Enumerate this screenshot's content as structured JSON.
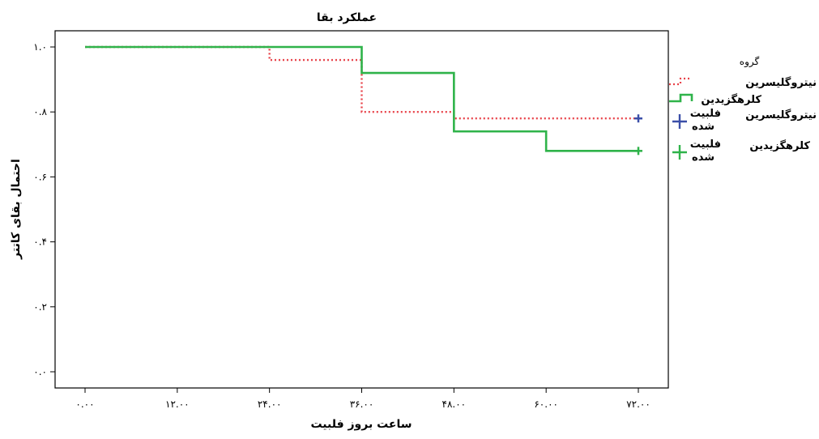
{
  "chart_data": {
    "type": "line",
    "step": true,
    "title": "عملکرد بقا",
    "xlabel": "ساعت بروز فلبیت",
    "ylabel": "احتمال بقای کاتتر",
    "xlim": [
      0,
      72
    ],
    "ylim": [
      0,
      1
    ],
    "x_ticks": [
      {
        "value": 0,
        "label": "۰.۰۰"
      },
      {
        "value": 12,
        "label": "۱۲.۰۰"
      },
      {
        "value": 24,
        "label": "۲۴.۰۰"
      },
      {
        "value": 36,
        "label": "۳۶.۰۰"
      },
      {
        "value": 48,
        "label": "۴۸.۰۰"
      },
      {
        "value": 60,
        "label": "۶۰.۰۰"
      },
      {
        "value": 72,
        "label": "۷۲.۰۰"
      }
    ],
    "y_ticks": [
      {
        "value": 0,
        "label": "۰.۰"
      },
      {
        "value": 0.2,
        "label": "۰.۲"
      },
      {
        "value": 0.4,
        "label": "۰.۴"
      },
      {
        "value": 0.6,
        "label": "۰.۶"
      },
      {
        "value": 0.8,
        "label": "۰.۸"
      },
      {
        "value": 1,
        "label": "۱.۰"
      }
    ],
    "series": [
      {
        "name": "نیتروگلیسرین",
        "color": "#e8434a",
        "style": "dotted",
        "x": [
          0,
          24,
          36,
          48,
          72
        ],
        "y": [
          1.0,
          0.96,
          0.8,
          0.78,
          0.78
        ],
        "censored": [
          [
            72,
            0.78
          ]
        ],
        "censored_color": "#3b4fa8"
      },
      {
        "name": "کلرهگزیدین",
        "color": "#2fb34a",
        "style": "solid",
        "x": [
          0,
          36,
          48,
          60,
          72
        ],
        "y": [
          1.0,
          0.92,
          0.74,
          0.68,
          0.68
        ],
        "censored": [
          [
            72,
            0.68
          ]
        ],
        "censored_color": "#2fb34a"
      }
    ],
    "legend": {
      "title": "گروه",
      "position": "right",
      "entries": [
        {
          "label": "نیتروگلیسرین",
          "color": "#e8434a",
          "kind": "step-dotted"
        },
        {
          "label": "کلرهگزیدین",
          "color": "#2fb34a",
          "kind": "step-solid"
        },
        {
          "label": "نیتروگلیسرین",
          "label2": "فلبیت",
          "label3": "شده",
          "color": "#3b4fa8",
          "kind": "cross"
        },
        {
          "label": "کلرهگزیدین",
          "label2": "فلبیت",
          "label3": "شده",
          "color": "#2fb34a",
          "kind": "cross"
        }
      ]
    }
  }
}
